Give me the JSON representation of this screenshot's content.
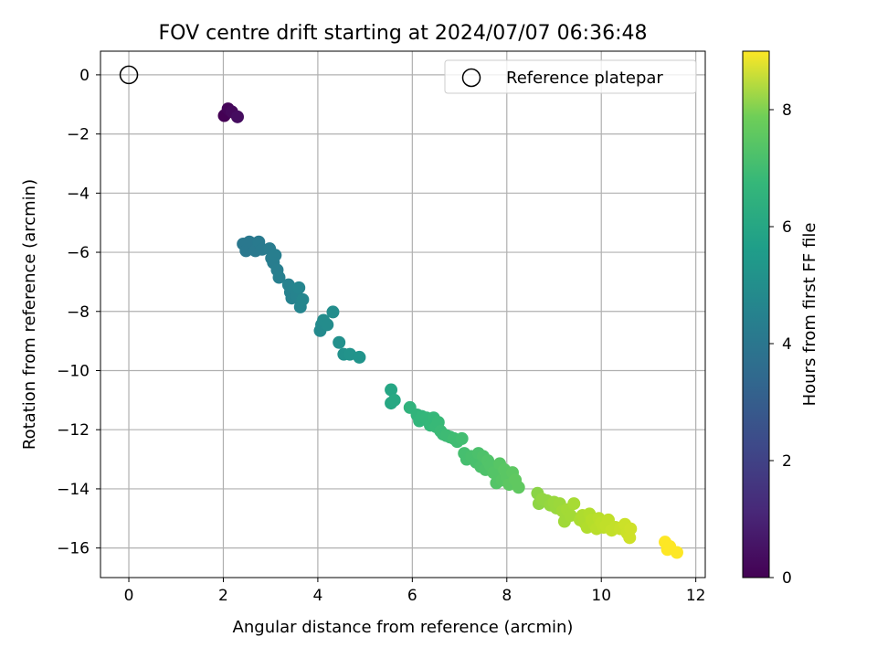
{
  "chart_data": {
    "type": "scatter",
    "title": "FOV centre drift starting at 2024/07/07 06:36:48",
    "xlabel": "Angular distance from reference (arcmin)",
    "ylabel": "Rotation from reference (arcmin)",
    "xlim": [
      -0.6,
      12.2
    ],
    "ylim": [
      -17.0,
      0.8
    ],
    "xticks": [
      0,
      2,
      4,
      6,
      8,
      10,
      12
    ],
    "yticks": [
      0,
      -2,
      -4,
      -6,
      -8,
      -10,
      -12,
      -14,
      -16
    ],
    "grid": true,
    "legend": {
      "location": "top-right",
      "entries": [
        "Reference platepar"
      ]
    },
    "reference_point": {
      "x": 0,
      "y": 0
    },
    "colorbar": {
      "label": "Hours from first FF file",
      "colormap": "viridis",
      "range": [
        0,
        9
      ],
      "ticks": [
        0,
        2,
        4,
        6,
        8
      ]
    },
    "series": [
      {
        "points": [
          [
            2.02,
            -1.38,
            0.0
          ],
          [
            2.1,
            -1.15,
            0.1
          ],
          [
            2.18,
            -1.25,
            0.2
          ],
          [
            2.3,
            -1.42,
            0.3
          ],
          [
            2.42,
            -5.72,
            3.6
          ],
          [
            2.48,
            -5.95,
            3.6
          ],
          [
            2.55,
            -5.65,
            3.6
          ],
          [
            2.62,
            -5.7,
            3.6
          ],
          [
            2.68,
            -5.95,
            3.65
          ],
          [
            2.75,
            -5.65,
            3.7
          ],
          [
            2.82,
            -5.9,
            3.7
          ],
          [
            2.98,
            -5.88,
            3.75
          ],
          [
            3.02,
            -6.2,
            3.8
          ],
          [
            3.06,
            -6.35,
            3.8
          ],
          [
            3.1,
            -6.1,
            3.85
          ],
          [
            3.14,
            -6.6,
            3.85
          ],
          [
            3.18,
            -6.85,
            3.9
          ],
          [
            3.38,
            -7.1,
            3.95
          ],
          [
            3.42,
            -7.35,
            4.0
          ],
          [
            3.45,
            -7.55,
            4.0
          ],
          [
            3.5,
            -7.25,
            4.05
          ],
          [
            3.55,
            -7.45,
            4.05
          ],
          [
            3.6,
            -7.2,
            4.1
          ],
          [
            3.63,
            -7.85,
            4.1
          ],
          [
            3.68,
            -7.6,
            4.15
          ],
          [
            4.05,
            -8.65,
            4.3
          ],
          [
            4.08,
            -8.45,
            4.3
          ],
          [
            4.12,
            -8.3,
            4.35
          ],
          [
            4.2,
            -8.45,
            4.35
          ],
          [
            4.32,
            -8.02,
            4.4
          ],
          [
            4.45,
            -9.05,
            4.5
          ],
          [
            4.55,
            -9.45,
            4.55
          ],
          [
            4.68,
            -9.45,
            4.6
          ],
          [
            4.88,
            -9.55,
            4.65
          ],
          [
            5.55,
            -10.65,
            5.3
          ],
          [
            5.55,
            -11.1,
            5.35
          ],
          [
            5.62,
            -11.0,
            5.4
          ],
          [
            5.95,
            -11.25,
            5.8
          ],
          [
            6.1,
            -11.5,
            5.85
          ],
          [
            6.15,
            -11.7,
            5.9
          ],
          [
            6.2,
            -11.55,
            5.9
          ],
          [
            6.3,
            -11.6,
            5.95
          ],
          [
            6.38,
            -11.85,
            6.0
          ],
          [
            6.45,
            -11.6,
            6.0
          ],
          [
            6.5,
            -11.9,
            6.05
          ],
          [
            6.55,
            -11.75,
            6.05
          ],
          [
            6.6,
            -12.05,
            6.1
          ],
          [
            6.65,
            -12.15,
            6.1
          ],
          [
            6.72,
            -12.2,
            6.15
          ],
          [
            6.8,
            -12.25,
            6.15
          ],
          [
            6.88,
            -12.3,
            6.2
          ],
          [
            6.95,
            -12.4,
            6.2
          ],
          [
            7.05,
            -12.3,
            6.25
          ],
          [
            7.1,
            -12.8,
            6.3
          ],
          [
            7.15,
            -13.0,
            6.3
          ],
          [
            7.25,
            -12.9,
            6.35
          ],
          [
            7.35,
            -13.1,
            6.35
          ],
          [
            7.4,
            -12.8,
            6.4
          ],
          [
            7.45,
            -13.25,
            6.4
          ],
          [
            7.5,
            -12.9,
            6.45
          ],
          [
            7.55,
            -13.35,
            6.45
          ],
          [
            7.6,
            -13.05,
            6.5
          ],
          [
            7.65,
            -13.2,
            6.5
          ],
          [
            7.72,
            -13.45,
            6.55
          ],
          [
            7.78,
            -13.8,
            6.55
          ],
          [
            7.85,
            -13.15,
            6.6
          ],
          [
            7.9,
            -13.7,
            6.6
          ],
          [
            7.95,
            -13.35,
            6.65
          ],
          [
            8.0,
            -13.6,
            6.65
          ],
          [
            8.05,
            -13.85,
            6.7
          ],
          [
            8.12,
            -13.45,
            6.7
          ],
          [
            8.18,
            -13.7,
            6.75
          ],
          [
            8.25,
            -13.95,
            6.75
          ],
          [
            8.65,
            -14.15,
            7.4
          ],
          [
            8.68,
            -14.5,
            7.45
          ],
          [
            8.75,
            -14.35,
            7.5
          ],
          [
            8.85,
            -14.4,
            7.5
          ],
          [
            8.92,
            -14.55,
            7.55
          ],
          [
            9.0,
            -14.45,
            7.6
          ],
          [
            9.05,
            -14.65,
            7.6
          ],
          [
            9.12,
            -14.5,
            7.65
          ],
          [
            9.18,
            -14.75,
            7.7
          ],
          [
            9.22,
            -15.1,
            7.7
          ],
          [
            9.28,
            -14.7,
            7.75
          ],
          [
            9.35,
            -14.9,
            7.75
          ],
          [
            9.42,
            -14.5,
            7.8
          ],
          [
            9.55,
            -15.05,
            7.85
          ],
          [
            9.6,
            -14.9,
            7.9
          ],
          [
            9.65,
            -15.15,
            7.9
          ],
          [
            9.7,
            -15.3,
            7.95
          ],
          [
            9.75,
            -14.85,
            7.95
          ],
          [
            9.8,
            -15.05,
            8.0
          ],
          [
            9.85,
            -15.2,
            8.0
          ],
          [
            9.9,
            -15.35,
            8.05
          ],
          [
            9.95,
            -15.0,
            8.05
          ],
          [
            10.0,
            -15.15,
            8.1
          ],
          [
            10.05,
            -15.3,
            8.1
          ],
          [
            10.1,
            -15.25,
            8.15
          ],
          [
            10.15,
            -15.05,
            8.15
          ],
          [
            10.22,
            -15.4,
            8.2
          ],
          [
            10.3,
            -15.3,
            8.2
          ],
          [
            10.4,
            -15.35,
            8.25
          ],
          [
            10.5,
            -15.2,
            8.3
          ],
          [
            10.55,
            -15.5,
            8.3
          ],
          [
            10.6,
            -15.65,
            8.35
          ],
          [
            10.62,
            -15.35,
            8.35
          ],
          [
            11.35,
            -15.8,
            9.0
          ],
          [
            11.4,
            -16.05,
            9.0
          ],
          [
            11.45,
            -15.95,
            9.0
          ],
          [
            11.6,
            -16.15,
            9.0
          ]
        ]
      }
    ]
  }
}
